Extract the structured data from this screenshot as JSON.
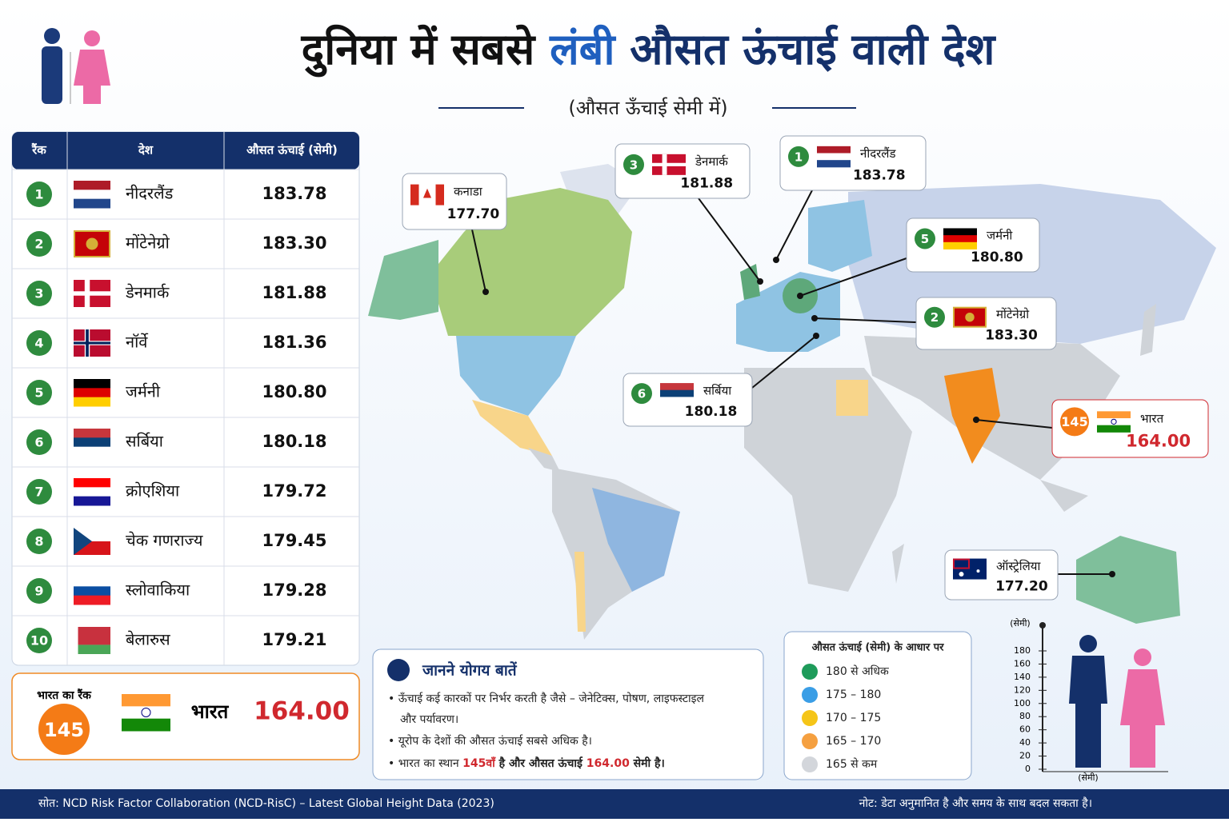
{
  "header": {
    "title_parts": [
      "दुनिया में सबसे ",
      "लंबी",
      " औसत ऊंचाई वाली देश"
    ],
    "subtitle": "(औसत ऊँचाई सेमी में)"
  },
  "table": {
    "columns": [
      "रैंक",
      "देश",
      "औसत ऊंचाई (सेमी)"
    ],
    "rows": [
      [
        1,
        "नीदरलैंड",
        "183.78"
      ],
      [
        2,
        "मोंटेनेग्रो",
        "183.30"
      ],
      [
        3,
        "डेनमार्क",
        "181.88"
      ],
      [
        4,
        "नॉर्वे",
        "181.36"
      ],
      [
        5,
        "जर्मनी",
        "180.80"
      ],
      [
        6,
        "सर्बिया",
        "180.18"
      ],
      [
        7,
        "क्रोएशिया",
        "179.72"
      ],
      [
        8,
        "चेक गणराज्य",
        "179.45"
      ],
      [
        9,
        "स्लोवाकिया",
        "179.28"
      ],
      [
        10,
        "बेलारुस",
        "179.21"
      ]
    ]
  },
  "india_rank": {
    "label": "भारत का रैंक",
    "rank": 145,
    "country": "भारत",
    "value": "164.00"
  },
  "map": {
    "callouts": [
      {
        "country": "कनाडा",
        "value": "177.70"
      },
      {
        "rank": 3,
        "country": "डेनमार्क",
        "value": "181.88"
      },
      {
        "rank": 1,
        "country": "नीदरलैंड",
        "value": "183.78"
      },
      {
        "rank": 5,
        "country": "जर्मनी",
        "value": "180.80"
      },
      {
        "rank": 2,
        "country": "मोंटेनेग्रो",
        "value": "183.30"
      },
      {
        "rank": 6,
        "country": "सर्बिया",
        "value": "180.18"
      },
      {
        "rank": 145,
        "country": "भारत",
        "value": "164.00"
      },
      {
        "country": "ऑस्ट्रेलिया",
        "value": "177.20"
      }
    ]
  },
  "facts": {
    "title": "जानने योगय बातें",
    "items": [
      [
        "ऊँचाई कई कारकों पर निर्भर करती है जैसे – जेनेटिक्स, पोषण, लाइफस्टाइल",
        "और पर्यावरण।"
      ],
      [
        "यूरोप के देशों की औसत ऊंचाई सबसे अधिक है।"
      ],
      [
        "भारत का स्थान ",
        "145वाँ",
        " है और औसत ऊंचाई ",
        "164.00",
        " सेमी है।"
      ]
    ]
  },
  "legend": {
    "title": "औसत ऊंचाई (सेमी) के आधार पर",
    "entries": [
      {
        "label": "180 से अधिक",
        "color": "#1e9b5a"
      },
      {
        "label": "175 – 180",
        "color": "#3a9ee6"
      },
      {
        "label": "170 – 175",
        "color": "#f5c518"
      },
      {
        "label": "165 – 170",
        "color": "#f5a040"
      },
      {
        "label": "165 से कम",
        "color": "#d3d6db"
      }
    ]
  },
  "scale": {
    "unit": "(सेमी)",
    "ticks": [
      180,
      160,
      140,
      120,
      100,
      80,
      60,
      40,
      20,
      0
    ],
    "bottom_label": "(सेमी)"
  },
  "footer": {
    "source": "सोत: NCD Risk Factor Collaboration (NCD-RisC) – Latest Global Height Data (2023)",
    "note": "नोट: डेटा अनुमानित है और समय के साथ बदल सकता है।"
  }
}
